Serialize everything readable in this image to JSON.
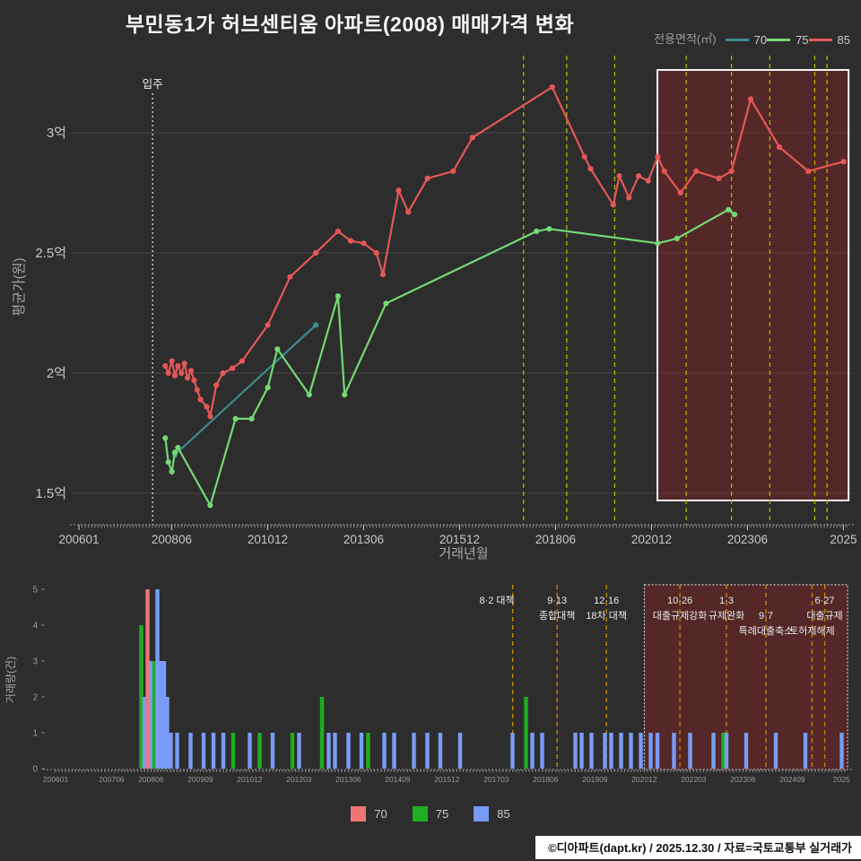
{
  "title": "부민동1가 허브센티움 아파트(2008) 매매가격 변화",
  "legend_top": {
    "label": "전용면적(㎡)",
    "items": [
      {
        "name": "70",
        "color": "#3d8b8b"
      },
      {
        "name": "75",
        "color": "#74d874"
      },
      {
        "name": "85",
        "color": "#e45757"
      }
    ]
  },
  "legend_bottom": {
    "items": [
      {
        "name": "70",
        "color": "#f07575"
      },
      {
        "name": "75",
        "color": "#1fae1f"
      },
      {
        "name": "85",
        "color": "#7a9bf5"
      }
    ]
  },
  "footer": "©디아파트(dapt.kr) / 2025.12.30 / 자료=국토교통부 실거래가",
  "chart_data": [
    {
      "type": "line",
      "xlabel": "거래년월",
      "ylabel": "평균가(원)",
      "unit": "억원",
      "ylim": [
        1.38,
        3.32
      ],
      "yticks": [
        {
          "v": 1.5,
          "label": "1.5억"
        },
        {
          "v": 2.0,
          "label": "2억"
        },
        {
          "v": 2.5,
          "label": "2.5억"
        },
        {
          "v": 3.0,
          "label": "3억"
        }
      ],
      "xticks": [
        {
          "v": 2006.0,
          "label": "200601"
        },
        {
          "v": 2008.417,
          "label": "200806"
        },
        {
          "v": 2010.917,
          "label": "201012"
        },
        {
          "v": 2013.417,
          "label": "201306"
        },
        {
          "v": 2015.917,
          "label": "201512"
        },
        {
          "v": 2018.417,
          "label": "201806"
        },
        {
          "v": 2020.917,
          "label": "202012"
        },
        {
          "v": 2023.417,
          "label": "202306"
        },
        {
          "v": 2025.917,
          "label": "2025"
        }
      ],
      "annotation": {
        "label": "입주",
        "x": 2007.92
      },
      "highlight": {
        "x0": 2021.07,
        "x1": 2026.05
      },
      "series": [
        {
          "name": "70",
          "color": "#3d8b8b",
          "points": [
            [
              2008.5,
              1.66
            ],
            [
              2012.17,
              2.2
            ]
          ]
        },
        {
          "name": "75",
          "color": "#74d874",
          "points": [
            [
              2008.25,
              1.73
            ],
            [
              2008.33,
              1.63
            ],
            [
              2008.42,
              1.59
            ],
            [
              2008.5,
              1.67
            ],
            [
              2008.58,
              1.69
            ],
            [
              2009.42,
              1.45
            ],
            [
              2010.08,
              1.81
            ],
            [
              2010.5,
              1.81
            ],
            [
              2010.92,
              1.94
            ],
            [
              2011.17,
              2.1
            ],
            [
              2012.0,
              1.91
            ],
            [
              2012.75,
              2.32
            ],
            [
              2012.92,
              1.91
            ],
            [
              2014.0,
              2.29
            ],
            [
              2017.92,
              2.59
            ],
            [
              2018.25,
              2.6
            ],
            [
              2021.08,
              2.54
            ],
            [
              2021.58,
              2.56
            ],
            [
              2022.92,
              2.68
            ],
            [
              2023.08,
              2.66
            ]
          ]
        },
        {
          "name": "85",
          "color": "#e45757",
          "points": [
            [
              2008.25,
              2.03
            ],
            [
              2008.33,
              2.0
            ],
            [
              2008.42,
              2.05
            ],
            [
              2008.5,
              1.99
            ],
            [
              2008.58,
              2.03
            ],
            [
              2008.67,
              2.0
            ],
            [
              2008.75,
              2.04
            ],
            [
              2008.83,
              1.98
            ],
            [
              2008.92,
              2.01
            ],
            [
              2009.0,
              1.97
            ],
            [
              2009.08,
              1.93
            ],
            [
              2009.17,
              1.89
            ],
            [
              2009.33,
              1.86
            ],
            [
              2009.42,
              1.82
            ],
            [
              2009.58,
              1.95
            ],
            [
              2009.75,
              2.0
            ],
            [
              2010.0,
              2.02
            ],
            [
              2010.25,
              2.05
            ],
            [
              2010.92,
              2.2
            ],
            [
              2011.5,
              2.4
            ],
            [
              2012.17,
              2.5
            ],
            [
              2012.75,
              2.59
            ],
            [
              2013.08,
              2.55
            ],
            [
              2013.42,
              2.54
            ],
            [
              2013.75,
              2.5
            ],
            [
              2013.92,
              2.41
            ],
            [
              2014.33,
              2.76
            ],
            [
              2014.58,
              2.67
            ],
            [
              2015.08,
              2.81
            ],
            [
              2015.75,
              2.84
            ],
            [
              2016.25,
              2.98
            ],
            [
              2018.33,
              3.19
            ],
            [
              2019.17,
              2.9
            ],
            [
              2019.33,
              2.85
            ],
            [
              2019.92,
              2.7
            ],
            [
              2020.08,
              2.82
            ],
            [
              2020.33,
              2.73
            ],
            [
              2020.58,
              2.82
            ],
            [
              2020.83,
              2.8
            ],
            [
              2021.08,
              2.9
            ],
            [
              2021.25,
              2.84
            ],
            [
              2021.67,
              2.75
            ],
            [
              2022.08,
              2.84
            ],
            [
              2022.67,
              2.81
            ],
            [
              2023.0,
              2.84
            ],
            [
              2023.5,
              3.14
            ],
            [
              2024.25,
              2.94
            ],
            [
              2025.0,
              2.84
            ],
            [
              2025.92,
              2.88
            ]
          ]
        }
      ]
    },
    {
      "type": "bar",
      "ylabel": "거래량(건)",
      "ylim": [
        0,
        5
      ],
      "yticks": [
        0,
        1,
        2,
        3,
        4,
        5
      ],
      "xticks": [
        {
          "v": 2006.0,
          "label": "200601"
        },
        {
          "v": 2007.417,
          "label": "200706"
        },
        {
          "v": 2008.417,
          "label": "200806"
        },
        {
          "v": 2009.667,
          "label": "200909"
        },
        {
          "v": 2010.917,
          "label": "201012"
        },
        {
          "v": 2012.167,
          "label": "201203"
        },
        {
          "v": 2013.417,
          "label": "201306"
        },
        {
          "v": 2014.667,
          "label": "201409"
        },
        {
          "v": 2015.917,
          "label": "201512"
        },
        {
          "v": 2017.167,
          "label": "201703"
        },
        {
          "v": 2018.417,
          "label": "201806"
        },
        {
          "v": 2019.667,
          "label": "201909"
        },
        {
          "v": 2020.917,
          "label": "202012"
        },
        {
          "v": 2022.167,
          "label": "202203"
        },
        {
          "v": 2023.417,
          "label": "202306"
        },
        {
          "v": 2024.667,
          "label": "202409"
        },
        {
          "v": 2025.917,
          "label": "2025"
        }
      ],
      "highlight": {
        "x0": 2020.92,
        "x1": 2026.07
      },
      "bars": [
        [
          2008.17,
          "75",
          4
        ],
        [
          2008.25,
          "85",
          2
        ],
        [
          2008.33,
          "70",
          5
        ],
        [
          2008.42,
          "85",
          3
        ],
        [
          2008.5,
          "75",
          3
        ],
        [
          2008.58,
          "85",
          5
        ],
        [
          2008.67,
          "85",
          3
        ],
        [
          2008.75,
          "85",
          3
        ],
        [
          2008.83,
          "85",
          2
        ],
        [
          2008.92,
          "85",
          1
        ],
        [
          2009.08,
          "85",
          1
        ],
        [
          2009.42,
          "85",
          1
        ],
        [
          2009.75,
          "85",
          1
        ],
        [
          2010.0,
          "85",
          1
        ],
        [
          2010.25,
          "85",
          1
        ],
        [
          2010.5,
          "75",
          1
        ],
        [
          2010.92,
          "85",
          1
        ],
        [
          2011.17,
          "75",
          1
        ],
        [
          2011.5,
          "85",
          1
        ],
        [
          2012.0,
          "75",
          1
        ],
        [
          2012.17,
          "85",
          1
        ],
        [
          2012.75,
          "75",
          2
        ],
        [
          2012.92,
          "85",
          1
        ],
        [
          2013.08,
          "85",
          1
        ],
        [
          2013.42,
          "85",
          1
        ],
        [
          2013.75,
          "85",
          1
        ],
        [
          2013.92,
          "75",
          1
        ],
        [
          2014.33,
          "85",
          1
        ],
        [
          2014.58,
          "85",
          1
        ],
        [
          2015.08,
          "85",
          1
        ],
        [
          2015.42,
          "85",
          1
        ],
        [
          2015.75,
          "85",
          1
        ],
        [
          2016.25,
          "85",
          1
        ],
        [
          2017.58,
          "85",
          1
        ],
        [
          2017.92,
          "75",
          2
        ],
        [
          2018.08,
          "85",
          1
        ],
        [
          2018.33,
          "85",
          1
        ],
        [
          2019.17,
          "85",
          1
        ],
        [
          2019.33,
          "85",
          1
        ],
        [
          2019.58,
          "85",
          1
        ],
        [
          2019.92,
          "85",
          1
        ],
        [
          2020.08,
          "85",
          1
        ],
        [
          2020.33,
          "85",
          1
        ],
        [
          2020.58,
          "85",
          1
        ],
        [
          2020.83,
          "85",
          1
        ],
        [
          2021.08,
          "85",
          1
        ],
        [
          2021.25,
          "85",
          1
        ],
        [
          2021.67,
          "85",
          1
        ],
        [
          2022.08,
          "85",
          1
        ],
        [
          2022.67,
          "85",
          1
        ],
        [
          2022.92,
          "75",
          1
        ],
        [
          2023.0,
          "85",
          1
        ],
        [
          2023.5,
          "85",
          1
        ],
        [
          2024.25,
          "85",
          1
        ],
        [
          2025.0,
          "85",
          1
        ],
        [
          2025.92,
          "85",
          1
        ]
      ]
    }
  ],
  "policy_markers": [
    {
      "x": 2017.583,
      "labels": [
        "8·2 대책"
      ],
      "rows": [
        1
      ],
      "anchor": "end"
    },
    {
      "x": 2018.708,
      "labels": [
        "9·13",
        "종합대책"
      ],
      "rows": [
        1,
        2
      ]
    },
    {
      "x": 2019.958,
      "labels": [
        "12·16",
        "18차 대책"
      ],
      "rows": [
        1,
        2
      ]
    },
    {
      "x": 2021.82,
      "labels": [
        "10·26",
        "대출규제강화"
      ],
      "rows": [
        1,
        2
      ]
    },
    {
      "x": 2023.0,
      "labels": [
        "1·3",
        "규제완화"
      ],
      "rows": [
        1,
        2
      ]
    },
    {
      "x": 2024.0,
      "labels": [
        "9·7",
        "특례대출축소"
      ],
      "rows": [
        2,
        3
      ]
    },
    {
      "x": 2025.17,
      "labels": [
        "토허제해제"
      ],
      "rows": [
        3
      ]
    },
    {
      "x": 2025.49,
      "labels": [
        "6·27",
        "대출규제"
      ],
      "rows": [
        1,
        2
      ]
    }
  ]
}
